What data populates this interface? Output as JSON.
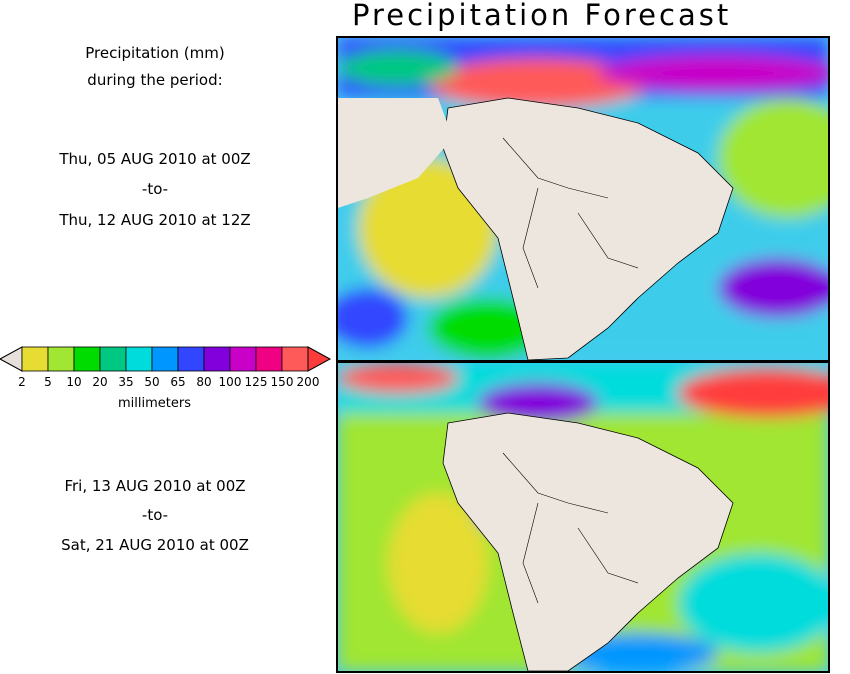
{
  "title": "Precipitation Forecast",
  "header": {
    "line1": "Precipitation (mm)",
    "line2": "during the period:"
  },
  "period1": {
    "start": "Thu, 05 AUG 2010 at 00Z",
    "sep": "-to-",
    "end": "Thu, 12 AUG 2010 at 12Z"
  },
  "period2": {
    "start": "Fri, 13 AUG 2010 at 00Z",
    "sep": "-to-",
    "end": "Sat, 21 AUG 2010 at 00Z"
  },
  "legend": {
    "units": "millimeters",
    "ticks": [
      "2",
      "5",
      "10",
      "20",
      "35",
      "50",
      "65",
      "80",
      "100",
      "125",
      "150",
      "200"
    ],
    "colors": [
      "#e6dc32",
      "#a0e632",
      "#00dc00",
      "#00c882",
      "#00dcdc",
      "#0096ff",
      "#3246ff",
      "#8200dc",
      "#c800c8",
      "#f00082",
      "#ff5a5a"
    ],
    "under_color": "#e6e0da",
    "over_color": "#ff3c3c"
  },
  "colors": {
    "land_dry": "#ede6df",
    "ocean_wet": "#4bc8f0"
  }
}
